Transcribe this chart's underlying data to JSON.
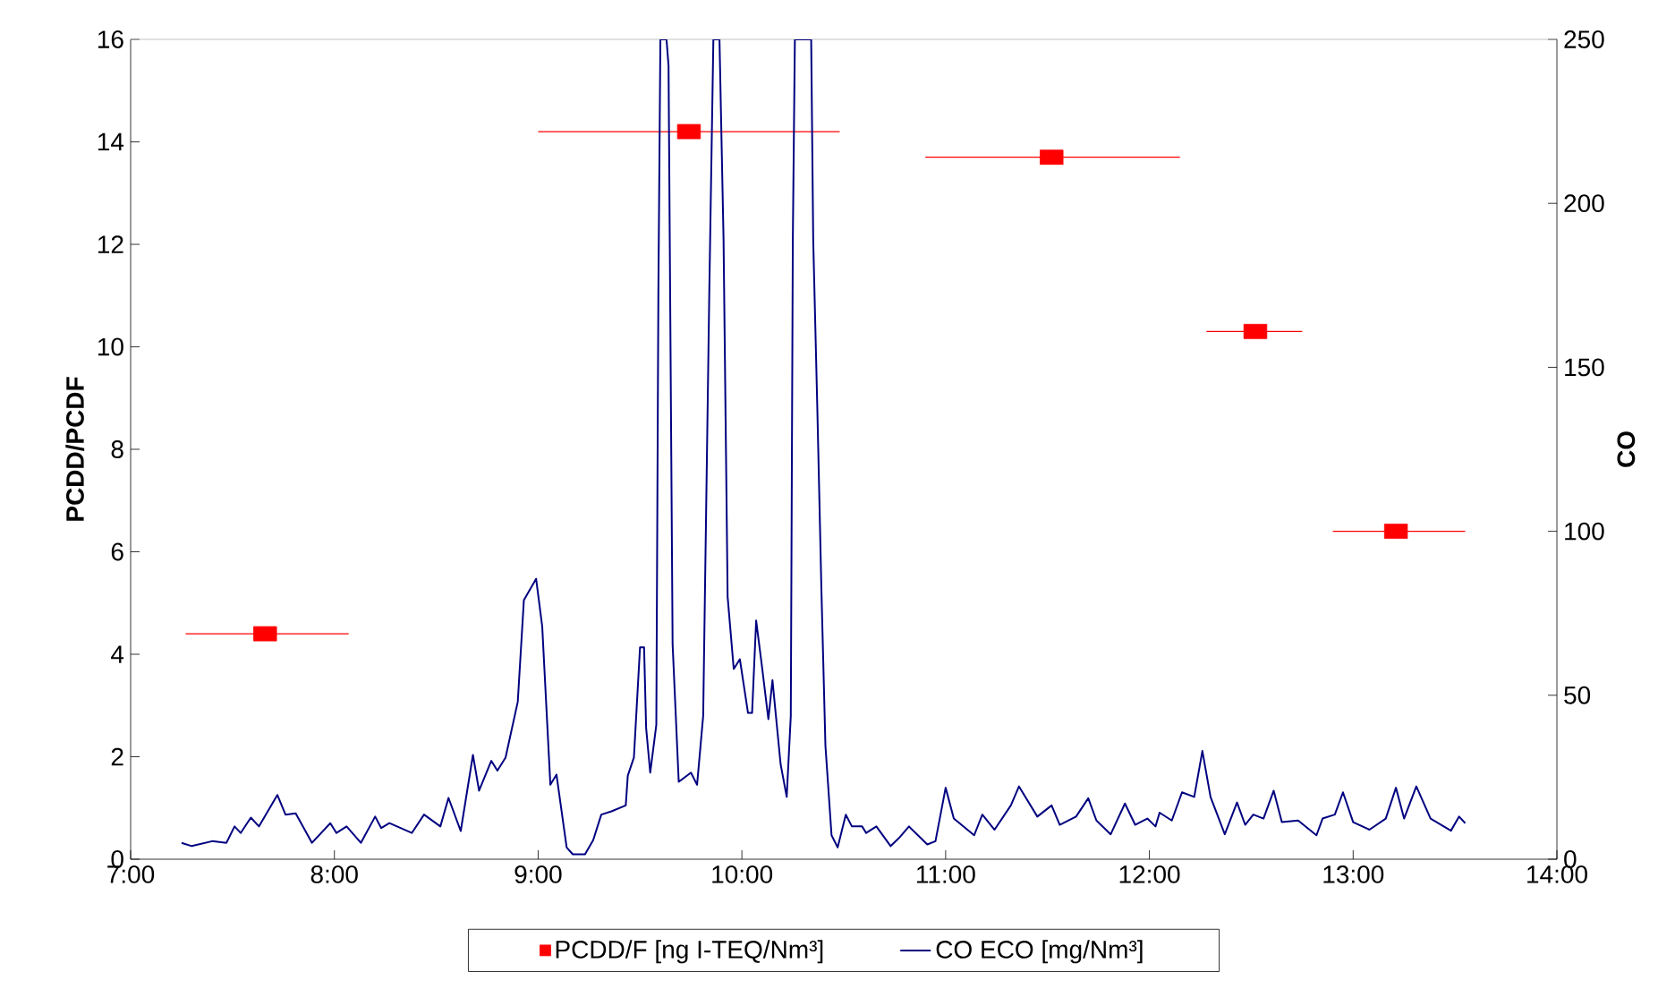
{
  "chart_data": {
    "type": "line",
    "ylabel": "PCDD/PCDF",
    "y2label": "CO",
    "xlim": [
      7,
      14
    ],
    "xticks": [
      {
        "value": 7,
        "label": "7:00"
      },
      {
        "value": 8,
        "label": "8:00"
      },
      {
        "value": 9,
        "label": "9:00"
      },
      {
        "value": 10,
        "label": "10:00"
      },
      {
        "value": 11,
        "label": "11:00"
      },
      {
        "value": 12,
        "label": "12:00"
      },
      {
        "value": 13,
        "label": "13:00"
      },
      {
        "value": 14,
        "label": "14:00"
      }
    ],
    "ylim": [
      0,
      16
    ],
    "yticks": [
      0,
      2,
      4,
      6,
      8,
      10,
      12,
      14,
      16
    ],
    "y2lim": [
      0,
      250
    ],
    "y2ticks": [
      0,
      50,
      100,
      150,
      200,
      250
    ],
    "legend": "bottom",
    "series": [
      {
        "name": "PCDD/F [ng I-TEQ/Nm³]",
        "type": "scatter",
        "marker": "square",
        "color": "#ff0000",
        "x": [
          7.66,
          9.74,
          11.52,
          12.52,
          13.21
        ],
        "values": [
          4.4,
          14.2,
          13.7,
          10.3,
          6.4
        ],
        "xerrors": [
          [
            7.27,
            8.07
          ],
          [
            9.0,
            10.48
          ],
          [
            10.9,
            12.15
          ],
          [
            12.28,
            12.75
          ],
          [
            12.9,
            13.55
          ]
        ]
      },
      {
        "name": "CO ECO [mg/Nm³]",
        "axis": "y2",
        "color": "#000080",
        "x": [
          7.25,
          7.3,
          7.4,
          7.47,
          7.51,
          7.54,
          7.59,
          7.63,
          7.72,
          7.76,
          7.81,
          7.89,
          7.98,
          8.01,
          8.06,
          8.13,
          8.2,
          8.23,
          8.27,
          8.38,
          8.44,
          8.52,
          8.56,
          8.62,
          8.68,
          8.71,
          8.77,
          8.8,
          8.84,
          8.9,
          8.93,
          8.99,
          9.02,
          9.06,
          9.09,
          9.14,
          9.17,
          9.23,
          9.27,
          9.31,
          9.36,
          9.43,
          9.44,
          9.47,
          9.5,
          9.52,
          9.53,
          9.55,
          9.58,
          9.59,
          9.6,
          9.63,
          9.64,
          9.66,
          9.69,
          9.75,
          9.78,
          9.81,
          9.84,
          9.86,
          9.89,
          9.91,
          9.93,
          9.96,
          9.99,
          10.03,
          10.05,
          10.07,
          10.1,
          10.13,
          10.15,
          10.19,
          10.22,
          10.24,
          10.25,
          10.26,
          10.34,
          10.35,
          10.37,
          10.39,
          10.41,
          10.44,
          10.47,
          10.51,
          10.54,
          10.59,
          10.61,
          10.66,
          10.73,
          10.77,
          10.82,
          10.91,
          10.95,
          11.0,
          11.04,
          11.14,
          11.18,
          11.24,
          11.32,
          11.36,
          11.45,
          11.52,
          11.56,
          11.64,
          11.7,
          11.74,
          11.81,
          11.88,
          11.93,
          11.99,
          12.03,
          12.05,
          12.11,
          12.16,
          12.22,
          12.26,
          12.3,
          12.37,
          12.43,
          12.47,
          12.51,
          12.56,
          12.61,
          12.65,
          12.73,
          12.82,
          12.85,
          12.91,
          12.95,
          13.0,
          13.08,
          13.16,
          13.21,
          13.25,
          13.31,
          13.38,
          13.48,
          13.52,
          13.55
        ],
        "values": [
          5,
          4,
          5.5,
          5,
          10,
          8,
          12.7,
          10,
          19.6,
          13.6,
          14,
          5,
          11,
          8,
          10,
          5,
          13,
          9.5,
          11,
          8,
          13.6,
          10,
          18.7,
          8.6,
          31.8,
          20.9,
          30,
          27,
          31,
          48,
          79,
          85.5,
          71,
          22.7,
          25.8,
          3.6,
          1.5,
          1.5,
          5.8,
          13.6,
          14.6,
          16.4,
          25.5,
          31,
          64.6,
          64.6,
          40,
          26.4,
          41,
          172,
          250,
          250,
          242,
          65.5,
          23.6,
          26.4,
          22.7,
          43.7,
          173,
          250,
          250,
          189,
          80,
          58,
          61,
          44.6,
          44.6,
          72.8,
          58,
          42.7,
          54.6,
          29,
          19,
          43.7,
          189,
          250,
          250,
          189,
          138,
          82.8,
          34.6,
          7.3,
          3.6,
          13.6,
          10,
          10,
          8,
          10,
          4,
          6.4,
          10,
          4.5,
          5.5,
          21.8,
          12.4,
          7.3,
          13.6,
          9,
          16.4,
          22.2,
          13,
          16.4,
          10.5,
          13,
          18.6,
          11.8,
          7.6,
          17,
          10.5,
          12.4,
          10,
          14.2,
          11.8,
          20.4,
          19,
          33,
          19,
          7.6,
          17.3,
          10.5,
          13.6,
          12.4,
          20.9,
          11.3,
          11.8,
          7.3,
          12.4,
          13.6,
          20.4,
          11.3,
          9,
          12.4,
          21.8,
          12.4,
          22.2,
          12.4,
          8.7,
          13,
          11
        ]
      }
    ]
  }
}
